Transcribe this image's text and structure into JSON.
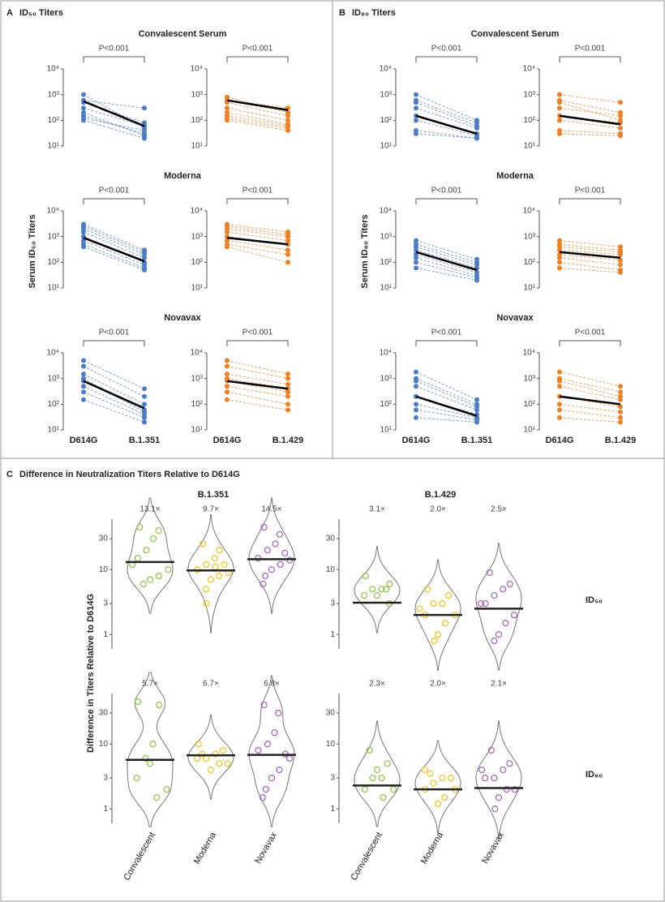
{
  "figure": {
    "panels": [
      {
        "letter": "A",
        "title": "ID₅₀ Titers",
        "ylabel": "Serum ID₅₀ Titers"
      },
      {
        "letter": "B",
        "title": "ID₈₀ Titers",
        "ylabel": "Serum ID₈₀ Titers"
      },
      {
        "letter": "C",
        "title": "Difference in Neutralization Titers Relative to D614G",
        "ylabel": "Difference in Titers Relative to D614G",
        "columns": [
          "B.1.351",
          "B.1.429"
        ],
        "rows": [
          "ID₅₀",
          "ID₈₀"
        ]
      }
    ]
  },
  "chart_data": [
    {
      "type": "paired-line",
      "title": "Convalescent Serum",
      "annotation": "P<0.001",
      "color": "#4a7cc7",
      "log": true,
      "ylim": [
        10,
        10000
      ],
      "yticks": [
        {
          "value": 10,
          "label": "10¹"
        },
        {
          "value": 100,
          "label": "10²"
        },
        {
          "value": 1000,
          "label": "10³"
        },
        {
          "value": 10000,
          "label": "10⁴"
        }
      ],
      "mean": [
        550,
        60
      ],
      "series": [
        {
          "values": [
            600,
            300
          ]
        },
        {
          "values": [
            500,
            80
          ]
        },
        {
          "values": [
            300,
            60
          ]
        },
        {
          "values": [
            150,
            30
          ]
        },
        {
          "values": [
            120,
            40
          ]
        },
        {
          "values": [
            100,
            20
          ]
        },
        {
          "values": [
            1000,
            50
          ]
        },
        {
          "values": [
            200,
            25
          ]
        }
      ]
    },
    {
      "type": "paired-line",
      "annotation": "P<0.001",
      "color": "#f07f1f",
      "log": true,
      "ylim": [
        10,
        10000
      ],
      "yticks": [
        {
          "value": 10,
          "label": "10¹"
        },
        {
          "value": 100,
          "label": "10²"
        },
        {
          "value": 1000,
          "label": "10³"
        },
        {
          "value": 10000,
          "label": "10⁴"
        }
      ],
      "mean": [
        600,
        250
      ],
      "series": [
        {
          "values": [
            600,
            300
          ]
        },
        {
          "values": [
            500,
            150
          ]
        },
        {
          "values": [
            300,
            100
          ]
        },
        {
          "values": [
            150,
            60
          ]
        },
        {
          "values": [
            120,
            50
          ]
        },
        {
          "values": [
            100,
            40
          ]
        },
        {
          "values": [
            800,
            200
          ]
        },
        {
          "values": [
            200,
            70
          ]
        }
      ]
    },
    {
      "type": "paired-line",
      "title": "Moderna",
      "annotation": "P<0.001",
      "color": "#4a7cc7",
      "log": true,
      "ylim": [
        10,
        10000
      ],
      "yticks": [
        {
          "value": 10,
          "label": "10¹"
        },
        {
          "value": 100,
          "label": "10²"
        },
        {
          "value": 1000,
          "label": "10³"
        },
        {
          "value": 10000,
          "label": "10⁴"
        }
      ],
      "mean": [
        900,
        110
      ],
      "series": [
        {
          "values": [
            3000,
            300
          ]
        },
        {
          "values": [
            2000,
            200
          ]
        },
        {
          "values": [
            1500,
            150
          ]
        },
        {
          "values": [
            1000,
            100
          ]
        },
        {
          "values": [
            700,
            80
          ]
        },
        {
          "values": [
            500,
            60
          ]
        },
        {
          "values": [
            400,
            50
          ]
        },
        {
          "values": [
            2500,
            250
          ]
        }
      ]
    },
    {
      "type": "paired-line",
      "annotation": "P<0.001",
      "color": "#f07f1f",
      "log": true,
      "ylim": [
        10,
        10000
      ],
      "yticks": [
        {
          "value": 10,
          "label": "10¹"
        },
        {
          "value": 100,
          "label": "10²"
        },
        {
          "value": 1000,
          "label": "10³"
        },
        {
          "value": 10000,
          "label": "10⁴"
        }
      ],
      "mean": [
        900,
        500
      ],
      "series": [
        {
          "values": [
            3000,
            1500
          ]
        },
        {
          "values": [
            2000,
            1000
          ]
        },
        {
          "values": [
            1500,
            700
          ]
        },
        {
          "values": [
            1000,
            500
          ]
        },
        {
          "values": [
            700,
            300
          ]
        },
        {
          "values": [
            500,
            200
          ]
        },
        {
          "values": [
            400,
            100
          ]
        },
        {
          "values": [
            2500,
            1200
          ]
        }
      ]
    },
    {
      "type": "paired-line",
      "title": "Novavax",
      "annotation": "P<0.001",
      "color": "#4a7cc7",
      "log": true,
      "ylim": [
        10,
        10000
      ],
      "categories": [
        "D614G",
        "B.1.351"
      ],
      "yticks": [
        {
          "value": 10,
          "label": "10¹"
        },
        {
          "value": 100,
          "label": "10²"
        },
        {
          "value": 1000,
          "label": "10³"
        },
        {
          "value": 10000,
          "label": "10⁴"
        }
      ],
      "mean": [
        800,
        70
      ],
      "series": [
        {
          "values": [
            5000,
            400
          ]
        },
        {
          "values": [
            3000,
            200
          ]
        },
        {
          "values": [
            1500,
            100
          ]
        },
        {
          "values": [
            800,
            60
          ]
        },
        {
          "values": [
            500,
            40
          ]
        },
        {
          "values": [
            300,
            30
          ]
        },
        {
          "values": [
            150,
            20
          ]
        },
        {
          "values": [
            1000,
            50
          ]
        }
      ]
    },
    {
      "type": "paired-line",
      "annotation": "P<0.001",
      "color": "#f07f1f",
      "log": true,
      "ylim": [
        10,
        10000
      ],
      "categories": [
        "D614G",
        "B.1.429"
      ],
      "yticks": [
        {
          "value": 10,
          "label": "10¹"
        },
        {
          "value": 100,
          "label": "10²"
        },
        {
          "value": 1000,
          "label": "10³"
        },
        {
          "value": 10000,
          "label": "10⁴"
        }
      ],
      "mean": [
        800,
        400
      ],
      "series": [
        {
          "values": [
            5000,
            1500
          ]
        },
        {
          "values": [
            3000,
            1000
          ]
        },
        {
          "values": [
            1500,
            600
          ]
        },
        {
          "values": [
            800,
            300
          ]
        },
        {
          "values": [
            500,
            200
          ]
        },
        {
          "values": [
            300,
            100
          ]
        },
        {
          "values": [
            150,
            60
          ]
        },
        {
          "values": [
            1000,
            400
          ]
        }
      ]
    },
    {
      "type": "paired-line",
      "title": "Convalescent Serum",
      "annotation": "P<0.001",
      "color": "#4a7cc7",
      "log": true,
      "ylim": [
        10,
        10000
      ],
      "yticks": [
        {
          "value": 10,
          "label": "10¹"
        },
        {
          "value": 100,
          "label": "10²"
        },
        {
          "value": 1000,
          "label": "10³"
        },
        {
          "value": 10000,
          "label": "10⁴"
        }
      ],
      "mean": [
        150,
        30
      ],
      "series": [
        {
          "values": [
            1000,
            100
          ]
        },
        {
          "values": [
            600,
            80
          ]
        },
        {
          "values": [
            300,
            50
          ]
        },
        {
          "values": [
            150,
            30
          ]
        },
        {
          "values": [
            100,
            25
          ]
        },
        {
          "values": [
            40,
            20
          ]
        },
        {
          "values": [
            30,
            20
          ]
        },
        {
          "values": [
            500,
            60
          ]
        }
      ]
    },
    {
      "type": "paired-line",
      "annotation": "P<0.001",
      "color": "#f07f1f",
      "log": true,
      "ylim": [
        10,
        10000
      ],
      "yticks": [
        {
          "value": 10,
          "label": "10¹"
        },
        {
          "value": 100,
          "label": "10²"
        },
        {
          "value": 1000,
          "label": "10³"
        },
        {
          "value": 10000,
          "label": "10⁴"
        }
      ],
      "mean": [
        150,
        70
      ],
      "series": [
        {
          "values": [
            1000,
            500
          ]
        },
        {
          "values": [
            600,
            200
          ]
        },
        {
          "values": [
            300,
            150
          ]
        },
        {
          "values": [
            150,
            80
          ]
        },
        {
          "values": [
            100,
            50
          ]
        },
        {
          "values": [
            40,
            30
          ]
        },
        {
          "values": [
            30,
            25
          ]
        },
        {
          "values": [
            500,
            100
          ]
        }
      ]
    },
    {
      "type": "paired-line",
      "title": "Moderna",
      "annotation": "P<0.001",
      "color": "#4a7cc7",
      "log": true,
      "ylim": [
        10,
        10000
      ],
      "yticks": [
        {
          "value": 10,
          "label": "10¹"
        },
        {
          "value": 100,
          "label": "10²"
        },
        {
          "value": 1000,
          "label": "10³"
        },
        {
          "value": 10000,
          "label": "10⁴"
        }
      ],
      "mean": [
        250,
        50
      ],
      "series": [
        {
          "values": [
            700,
            130
          ]
        },
        {
          "values": [
            500,
            100
          ]
        },
        {
          "values": [
            300,
            60
          ]
        },
        {
          "values": [
            200,
            40
          ]
        },
        {
          "values": [
            150,
            30
          ]
        },
        {
          "values": [
            100,
            25
          ]
        },
        {
          "values": [
            60,
            20
          ]
        },
        {
          "values": [
            400,
            80
          ]
        }
      ]
    },
    {
      "type": "paired-line",
      "annotation": "P<0.001",
      "color": "#f07f1f",
      "log": true,
      "ylim": [
        10,
        10000
      ],
      "yticks": [
        {
          "value": 10,
          "label": "10¹"
        },
        {
          "value": 100,
          "label": "10²"
        },
        {
          "value": 1000,
          "label": "10³"
        },
        {
          "value": 10000,
          "label": "10⁴"
        }
      ],
      "mean": [
        250,
        150
      ],
      "series": [
        {
          "values": [
            700,
            400
          ]
        },
        {
          "values": [
            500,
            300
          ]
        },
        {
          "values": [
            300,
            200
          ]
        },
        {
          "values": [
            200,
            120
          ]
        },
        {
          "values": [
            150,
            80
          ]
        },
        {
          "values": [
            100,
            50
          ]
        },
        {
          "values": [
            60,
            40
          ]
        },
        {
          "values": [
            400,
            250
          ]
        }
      ]
    },
    {
      "type": "paired-line",
      "title": "Novavax",
      "annotation": "P<0.001",
      "color": "#4a7cc7",
      "log": true,
      "ylim": [
        10,
        10000
      ],
      "categories": [
        "D614G",
        "B.1.351"
      ],
      "yticks": [
        {
          "value": 10,
          "label": "10¹"
        },
        {
          "value": 100,
          "label": "10²"
        },
        {
          "value": 1000,
          "label": "10³"
        },
        {
          "value": 10000,
          "label": "10⁴"
        }
      ],
      "mean": [
        200,
        35
      ],
      "series": [
        {
          "values": [
            1800,
            150
          ]
        },
        {
          "values": [
            1000,
            100
          ]
        },
        {
          "values": [
            500,
            60
          ]
        },
        {
          "values": [
            200,
            40
          ]
        },
        {
          "values": [
            100,
            30
          ]
        },
        {
          "values": [
            60,
            25
          ]
        },
        {
          "values": [
            30,
            20
          ]
        },
        {
          "values": [
            800,
            80
          ]
        }
      ]
    },
    {
      "type": "paired-line",
      "annotation": "P<0.001",
      "color": "#f07f1f",
      "log": true,
      "ylim": [
        10,
        10000
      ],
      "categories": [
        "D614G",
        "B.1.429"
      ],
      "yticks": [
        {
          "value": 10,
          "label": "10¹"
        },
        {
          "value": 100,
          "label": "10²"
        },
        {
          "value": 1000,
          "label": "10³"
        },
        {
          "value": 10000,
          "label": "10⁴"
        }
      ],
      "mean": [
        200,
        100
      ],
      "series": [
        {
          "values": [
            1800,
            500
          ]
        },
        {
          "values": [
            1000,
            300
          ]
        },
        {
          "values": [
            500,
            150
          ]
        },
        {
          "values": [
            200,
            80
          ]
        },
        {
          "values": [
            100,
            50
          ]
        },
        {
          "values": [
            60,
            30
          ]
        },
        {
          "values": [
            30,
            20
          ]
        },
        {
          "values": [
            800,
            200
          ]
        }
      ]
    },
    {
      "type": "violin",
      "log": true,
      "ylim": [
        0.6,
        60
      ],
      "yticks": [
        1,
        3,
        10,
        30
      ],
      "colors": [
        "#8dc63f",
        "#f2c314",
        "#a45fc0"
      ],
      "values": [
        13.1,
        9.7,
        14.5
      ],
      "value_labels": [
        "13.1×",
        "9.7×",
        "14.5×"
      ],
      "points": [
        [
          45,
          40,
          30,
          20,
          15,
          10,
          8,
          7,
          6,
          12
        ],
        [
          25,
          20,
          15,
          12,
          10,
          9,
          8,
          7,
          5,
          3,
          12,
          11
        ],
        [
          45,
          35,
          25,
          20,
          15,
          14,
          12,
          10,
          8,
          6,
          18
        ]
      ]
    },
    {
      "type": "violin",
      "log": true,
      "ylim": [
        0.6,
        60
      ],
      "yticks": [
        1,
        3,
        10,
        30
      ],
      "colors": [
        "#8dc63f",
        "#f2c314",
        "#a45fc0"
      ],
      "values": [
        3.1,
        2.0,
        2.5
      ],
      "value_labels": [
        "3.1×",
        "2.0×",
        "2.5×"
      ],
      "points": [
        [
          8,
          6,
          5,
          5,
          4,
          3,
          5,
          4
        ],
        [
          5,
          4,
          3,
          3,
          2,
          2,
          1.5,
          1,
          0.8,
          2.5
        ],
        [
          9,
          6,
          5,
          4,
          3,
          2,
          1.5,
          1,
          0.8,
          3
        ]
      ]
    },
    {
      "type": "violin",
      "log": true,
      "ylim": [
        0.6,
        60
      ],
      "yticks": [
        1,
        3,
        10,
        30
      ],
      "colors": [
        "#8dc63f",
        "#f2c314",
        "#a45fc0"
      ],
      "categories": [
        "Convalescent",
        "Moderna",
        "Novavax"
      ],
      "values": [
        5.7,
        6.7,
        6.8
      ],
      "value_labels": [
        "5.7×",
        "6.7×",
        "6.8×"
      ],
      "points": [
        [
          45,
          40,
          10,
          6,
          3,
          2,
          1.5,
          5
        ],
        [
          10,
          8,
          7,
          6,
          6,
          5,
          5,
          4,
          7
        ],
        [
          40,
          30,
          15,
          10,
          8,
          6,
          4,
          3,
          2,
          1.5,
          7
        ]
      ]
    },
    {
      "type": "violin",
      "log": true,
      "ylim": [
        0.6,
        60
      ],
      "yticks": [
        1,
        3,
        10,
        30
      ],
      "colors": [
        "#8dc63f",
        "#f2c314",
        "#a45fc0"
      ],
      "categories": [
        "Convalescent",
        "Moderna",
        "Novavax"
      ],
      "values": [
        2.3,
        2.0,
        2.1
      ],
      "value_labels": [
        "2.3×",
        "2.0×",
        "2.1×"
      ],
      "points": [
        [
          8,
          5,
          3,
          3,
          2,
          2,
          1.5,
          4
        ],
        [
          4,
          3,
          3,
          2.5,
          2,
          2,
          1.5,
          1.2,
          3.5
        ],
        [
          8,
          5,
          4,
          3,
          3,
          2,
          2,
          1.5,
          1,
          4
        ]
      ]
    }
  ]
}
